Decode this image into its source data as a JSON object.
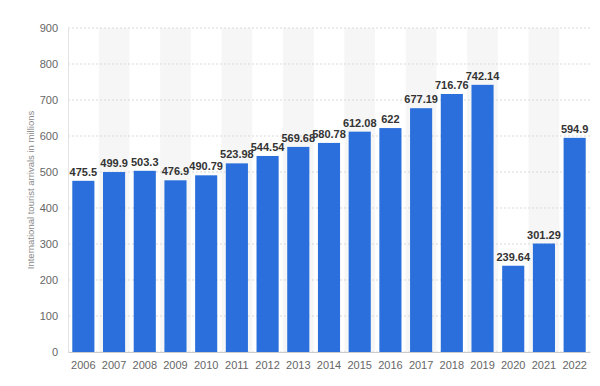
{
  "chart_data": {
    "type": "bar",
    "y_label": "International tourist arrivals in millions",
    "categories": [
      "2006",
      "2007",
      "2008",
      "2009",
      "2010",
      "2011",
      "2012",
      "2013",
      "2014",
      "2015",
      "2016",
      "2017",
      "2018",
      "2019",
      "2020",
      "2021",
      "2022"
    ],
    "values": [
      475.5,
      499.9,
      503.3,
      476.9,
      490.79,
      523.98,
      544.54,
      569.68,
      580.78,
      612.08,
      622,
      677.19,
      716.76,
      742.14,
      239.64,
      301.29,
      594.9
    ],
    "color": "#2a6fdb",
    "ylim": [
      0,
      900
    ],
    "yticks": [
      0,
      100,
      200,
      300,
      400,
      500,
      600,
      700,
      800,
      900
    ],
    "grid": true,
    "data_labels": true
  }
}
